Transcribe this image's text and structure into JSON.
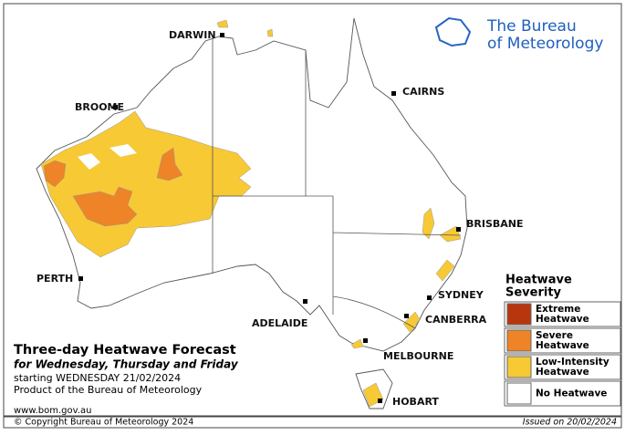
{
  "logo": {
    "line1": "The Bureau",
    "line2": "of Meteorology"
  },
  "title": "Three-day Heatwave Forecast",
  "subtitle": "for Wednesday, Thursday and Friday",
  "starting": "starting WEDNESDAY 21/02/2024",
  "product": "Product of the Bureau of Meteorology",
  "website": "www.bom.gov.au",
  "copyright": "© Copyright Bureau of Meteorology 2024",
  "issued": "Issued on 20/02/2024",
  "legend": {
    "title": [
      "Heatwave",
      "Severity"
    ],
    "items": [
      {
        "label": [
          "Extreme",
          "Heatwave"
        ],
        "color": "#b8360e"
      },
      {
        "label": [
          "Severe",
          "Heatwave"
        ],
        "color": "#ee8427"
      },
      {
        "label": [
          "Low-Intensity",
          "Heatwave"
        ],
        "color": "#f7c935"
      },
      {
        "label": [
          "No Heatwave"
        ],
        "color": "#ffffff"
      }
    ]
  },
  "cities": [
    "DARWIN",
    "BROOME",
    "CAIRNS",
    "PERTH",
    "ADELAIDE",
    "BRISBANE",
    "SYDNEY",
    "CANBERRA",
    "MELBOURNE",
    "HOBART"
  ]
}
